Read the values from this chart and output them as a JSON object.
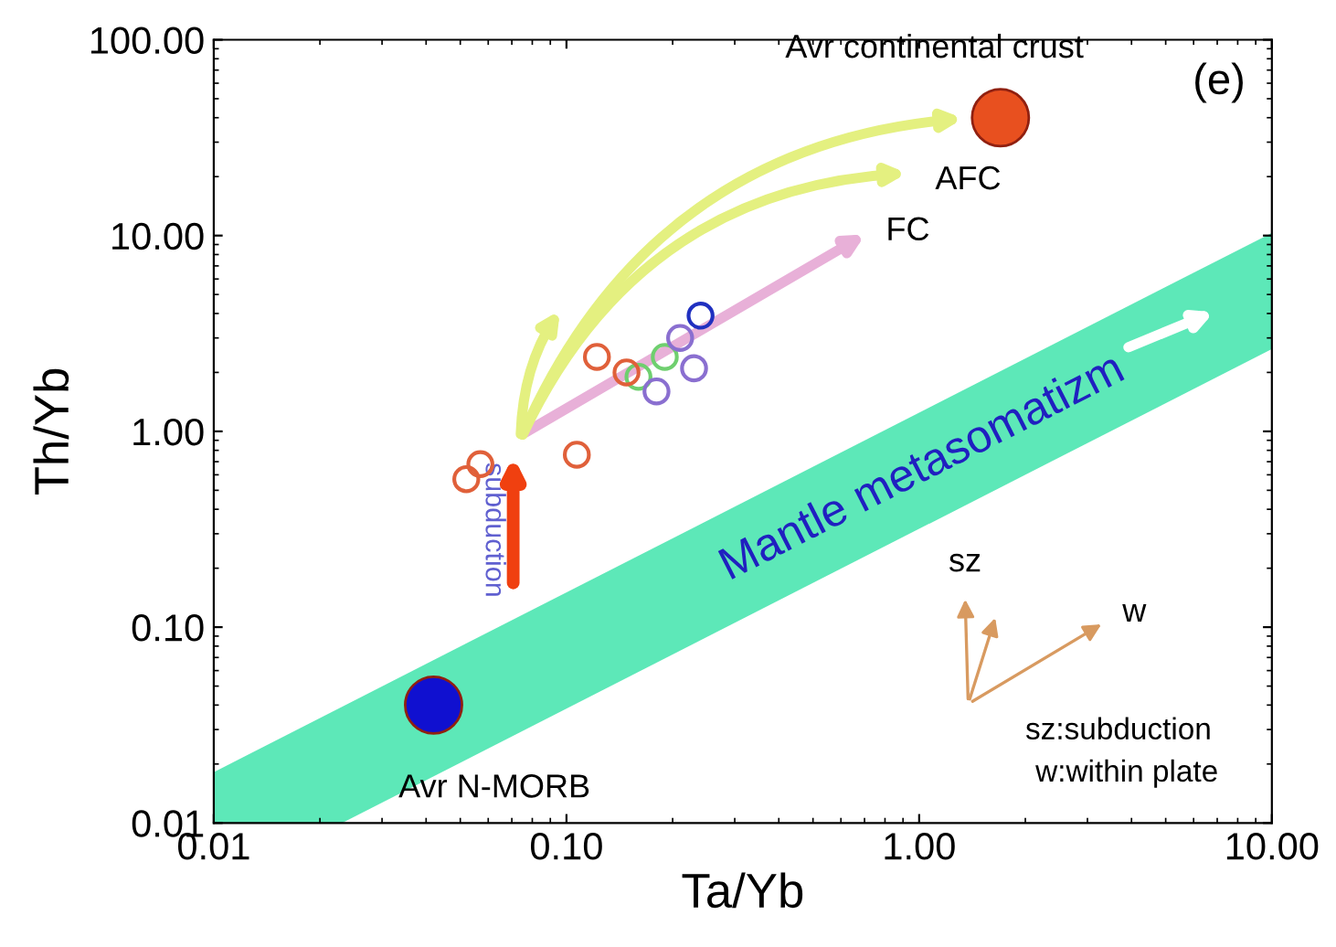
{
  "chart_data": {
    "type": "scatter",
    "xlabel": "Ta/Yb",
    "ylabel": "Th/Yb",
    "log": "xy",
    "grid": false,
    "marker": "circle",
    "xlim": [
      0.01,
      10
    ],
    "ylim": [
      0.01,
      100
    ],
    "xticks": [
      {
        "value": 0.01,
        "label": "0.01"
      },
      {
        "value": 0.1,
        "label": "0.10"
      },
      {
        "value": 1,
        "label": "1.00"
      },
      {
        "value": 10,
        "label": "10.00"
      }
    ],
    "yticks": [
      {
        "value": 0.01,
        "label": "0.01"
      },
      {
        "value": 0.1,
        "label": "0.10"
      },
      {
        "value": 1,
        "label": "1.00"
      },
      {
        "value": 10,
        "label": "10.00"
      },
      {
        "value": 100,
        "label": "100.00"
      }
    ],
    "series": [
      {
        "color": "#e0603a",
        "x": [
          0.052,
          0.057,
          0.107,
          0.122,
          0.148
        ],
        "values": [
          0.57,
          0.68,
          0.76,
          2.4,
          2.0
        ]
      },
      {
        "color": "#8a6fd0",
        "x": [
          0.18,
          0.23,
          0.21
        ],
        "values": [
          1.6,
          2.1,
          3.0
        ]
      },
      {
        "color": "#6fcf6f",
        "x": [
          0.16,
          0.19
        ],
        "values": [
          1.9,
          2.4
        ]
      },
      {
        "color": "#2030c0",
        "x": [
          0.24
        ],
        "values": [
          3.9
        ]
      },
      {
        "type": "bubble",
        "color": "#1010d0",
        "x": [
          0.042
        ],
        "values": [
          0.04
        ],
        "sizes": [
          1
        ]
      },
      {
        "type": "bubble",
        "color": "#e8501f",
        "x": [
          1.7
        ],
        "values": [
          40
        ],
        "sizes": [
          1
        ]
      }
    ],
    "annotations": [
      {
        "text": "Avr continental crust",
        "x": 1.7,
        "y": 40
      },
      {
        "text": "Avr N-MORB",
        "x": 0.042,
        "y": 0.04
      },
      "(e)",
      "AFC",
      "FC",
      "Mantle metasomatizm",
      "subduction",
      "sz",
      "w",
      "sz:subduction",
      "w:within plate"
    ]
  }
}
